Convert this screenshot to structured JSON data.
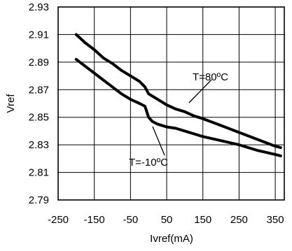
{
  "chart_data": {
    "type": "line",
    "xlabel": "Ivref(mA)",
    "ylabel": "Vref",
    "xlim": [
      -250,
      375
    ],
    "ylim": [
      2.79,
      2.93
    ],
    "xticks": [
      -250,
      -150,
      -50,
      50,
      150,
      250,
      350
    ],
    "xtick_labels": [
      "-250",
      "-150",
      "-50",
      "50",
      "150",
      "250",
      "350"
    ],
    "yticks": [
      2.79,
      2.81,
      2.83,
      2.85,
      2.87,
      2.89,
      2.91,
      2.93
    ],
    "ytick_labels": [
      "2.79",
      "2.81",
      "2.83",
      "2.85",
      "2.87",
      "2.89",
      "2.91",
      "2.93"
    ],
    "grid": true,
    "series": [
      {
        "name": "T=80ºC",
        "x": [
          -200,
          -175,
          -150,
          -125,
          -100,
          -75,
          -50,
          -25,
          -10,
          0,
          25,
          50,
          75,
          100,
          125,
          150,
          200,
          250,
          300,
          350,
          365
        ],
        "y": [
          2.91,
          2.904,
          2.899,
          2.893,
          2.889,
          2.884,
          2.88,
          2.876,
          2.872,
          2.867,
          2.863,
          2.859,
          2.856,
          2.854,
          2.851,
          2.849,
          2.844,
          2.839,
          2.834,
          2.829,
          2.828
        ]
      },
      {
        "name": "T=-10ºC",
        "x": [
          -200,
          -175,
          -150,
          -125,
          -100,
          -75,
          -50,
          -25,
          -10,
          0,
          10,
          25,
          50,
          75,
          100,
          125,
          150,
          200,
          250,
          300,
          350,
          365
        ],
        "y": [
          2.892,
          2.887,
          2.882,
          2.877,
          2.872,
          2.867,
          2.863,
          2.86,
          2.858,
          2.85,
          2.847,
          2.845,
          2.843,
          2.842,
          2.84,
          2.838,
          2.836,
          2.833,
          2.83,
          2.826,
          2.823,
          2.822
        ]
      }
    ],
    "annotations": [
      {
        "text": "T=80ºC",
        "series": 0
      },
      {
        "text": "T=-10ºC",
        "series": 1
      }
    ]
  }
}
